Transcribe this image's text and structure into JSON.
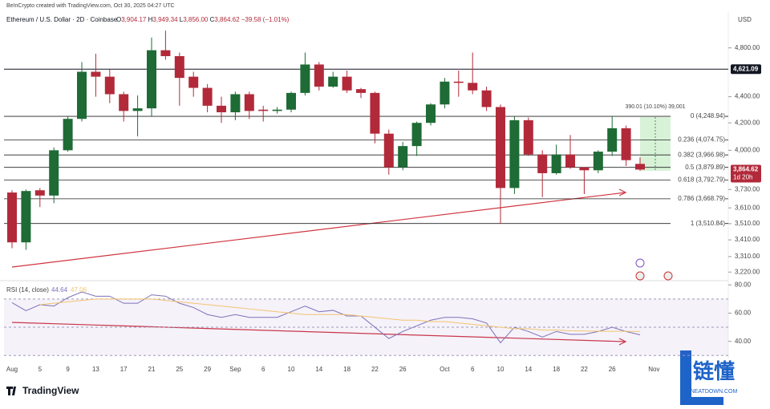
{
  "header": {
    "credit": "BeInCrypto created with TradingView.com, Oct 30, 2025 04:27 UTC",
    "symbol": "Ethereum / U.S. Dollar · 2D · Coinbase",
    "o": "O",
    "h": "H",
    "l": "L",
    "c": "C",
    "change": "−39.58 (−1.01%)",
    "currency": "USD",
    "logo": "TradingView",
    "watermark": "链懂",
    "watermark_url": "NEATDOWN.COM"
  },
  "chart_data": [
    {
      "type": "candlestick",
      "log": true,
      "up_color": "#1e6b35",
      "down_color": "#b22a3a",
      "ohlc_labels": {
        "open": "3,904.17",
        "high": "3,949.34",
        "low": "3,856.00",
        "close": "3,864.62"
      },
      "countdown": "1d 20h",
      "categories": [
        "Aug",
        null,
        "5",
        null,
        "9",
        null,
        "13",
        null,
        "17",
        null,
        "21",
        null,
        "25",
        null,
        "29",
        null,
        "Sep",
        null,
        "6",
        null,
        "10",
        null,
        "14",
        null,
        "18",
        null,
        "22",
        null,
        "26",
        null,
        null,
        "Oct",
        null,
        "6",
        null,
        "10",
        null,
        "14",
        null,
        "18",
        null,
        "22",
        null,
        "26",
        null,
        null,
        "Nov"
      ],
      "open": [
        3710,
        3395,
        3725,
        3690,
        4000,
        4230,
        4600,
        4560,
        4420,
        4290,
        4310,
        4780,
        4730,
        4560,
        4470,
        4330,
        4280,
        4420,
        4300,
        4290,
        4300,
        4430,
        4660,
        4480,
        4560,
        4460,
        4430,
        4120,
        3880,
        4030,
        4200,
        4340,
        4520,
        4510,
        4450,
        4320,
        3740,
        4220,
        3970,
        3840,
        3970,
        3880,
        3860,
        3990,
        4160,
        3904.17,
        null
      ],
      "high": [
        3725,
        3730,
        3740,
        4020,
        4250,
        4680,
        4750,
        4620,
        4440,
        4410,
        4890,
        4950,
        4760,
        4600,
        4500,
        4400,
        4440,
        4440,
        4330,
        4320,
        4440,
        4760,
        4680,
        4600,
        4610,
        4470,
        4440,
        4150,
        4060,
        4210,
        4350,
        4550,
        4610,
        4760,
        4480,
        4340,
        4250,
        4240,
        4000,
        4040,
        4110,
        3880,
        4000,
        4250,
        4180,
        3949.34,
        null
      ],
      "low": [
        3360,
        3350,
        3615,
        3640,
        3990,
        4210,
        4400,
        4350,
        4210,
        4100,
        4250,
        4700,
        4330,
        4400,
        4280,
        4200,
        4220,
        4230,
        4210,
        4270,
        4280,
        4410,
        4450,
        4470,
        4430,
        4390,
        4050,
        3830,
        3860,
        3960,
        4180,
        4310,
        4400,
        4420,
        4290,
        3510,
        3700,
        3960,
        3680,
        3830,
        3870,
        3700,
        3840,
        3960,
        3890,
        3856.0,
        null
      ],
      "close": [
        3395,
        3720,
        3690,
        4000,
        4230,
        4600,
        4560,
        4420,
        4290,
        4310,
        4780,
        4730,
        4550,
        4470,
        4330,
        4280,
        4420,
        4290,
        4290,
        4300,
        4430,
        4660,
        4480,
        4560,
        4450,
        4430,
        4120,
        3880,
        4030,
        4200,
        4340,
        4520,
        4510,
        4450,
        4320,
        3740,
        4220,
        3970,
        3840,
        3970,
        3880,
        3860,
        3990,
        4160,
        3930,
        3864.62,
        null
      ],
      "ylim": [
        3180,
        5080
      ],
      "yticks": [
        {
          "value": 4800,
          "label": "4,800.00"
        },
        {
          "value": 4400,
          "label": "4,400.00"
        },
        {
          "value": 4200,
          "label": "4,200.00"
        },
        {
          "value": 4000,
          "label": "4,000.00"
        },
        {
          "value": 3730,
          "label": "3,730.00"
        },
        {
          "value": 3610,
          "label": "3,610.00"
        },
        {
          "value": 3510,
          "label": "3,510.00"
        },
        {
          "value": 3410,
          "label": "3,410.00"
        },
        {
          "value": 3310,
          "label": "3,310.00"
        },
        {
          "value": 3220,
          "label": "3,220.00"
        }
      ],
      "resistance": {
        "value": 4621.09,
        "label": "4,621.09"
      },
      "fib_levels": [
        {
          "value": 4248.94,
          "label": "0 (4,248.94)"
        },
        {
          "value": 4074.75,
          "label": "0.236 (4,074.75)"
        },
        {
          "value": 3966.98,
          "label": "0.382 (3,966.98)"
        },
        {
          "value": 3879.89,
          "label": "0.5 (3,879.89)"
        },
        {
          "value": 3792.79,
          "label": "0.618 (3,792.79)"
        },
        {
          "value": 3668.79,
          "label": "0.786 (3,668.79)"
        },
        {
          "value": 3510.84,
          "label": "1 (3,510.84)"
        }
      ],
      "measure_label": "390.01 (10.10%) 39,001"
    },
    {
      "type": "line",
      "title": "RSI (14, close)",
      "series": [
        {
          "name": "RSI",
          "color": "#7e72b8",
          "values": [
            67.4,
            61.7,
            66,
            65,
            71,
            75,
            72,
            72,
            67,
            67,
            73,
            72,
            67,
            64,
            59,
            57,
            59,
            57,
            57,
            57,
            61,
            65,
            61,
            62,
            58,
            58,
            50,
            42,
            47,
            51,
            55,
            57,
            57,
            56,
            53,
            39,
            50,
            47,
            43,
            47,
            45,
            45,
            47,
            50,
            47,
            44.64,
            null
          ]
        },
        {
          "name": "RSI MA",
          "color": "#f2c46f",
          "values": [
            null,
            null,
            66,
            67,
            68,
            69,
            70,
            70,
            70,
            70,
            70,
            69,
            68,
            67,
            66,
            65,
            64,
            63,
            62,
            61,
            60,
            59,
            59,
            59,
            59,
            58,
            57,
            56,
            55,
            55,
            54,
            54,
            53,
            52,
            51,
            50,
            49,
            49,
            48,
            48,
            47.5,
            47.3,
            47.2,
            47.1,
            47.1,
            47.06,
            null
          ]
        }
      ],
      "ylim": [
        29,
        83
      ],
      "yticks": [
        {
          "value": 80,
          "label": "80.00"
        },
        {
          "value": 60,
          "label": "60.00"
        },
        {
          "value": 40,
          "label": "40.00"
        }
      ],
      "levels": [
        70,
        50,
        30
      ]
    }
  ]
}
